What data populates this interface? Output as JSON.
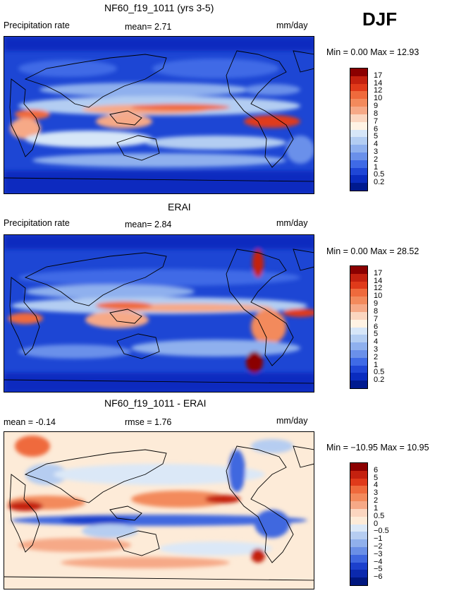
{
  "season": "DJF",
  "panels": [
    {
      "title": "NF60_f19_1011 (yrs 3-5)",
      "left_label": "Precipitation rate",
      "mid_label": "mean=    2.71",
      "units": "mm/day",
      "minmax": "Min =     0.00 Max =    12.93",
      "colorbar_levels": [
        "17",
        "14",
        "12",
        "10",
        "9",
        "8",
        "7",
        "6",
        "5",
        "4",
        "3",
        "2",
        "1",
        "0.5",
        "0.2"
      ]
    },
    {
      "title": "ERAI",
      "left_label": "Precipitation rate",
      "mid_label": "mean=    2.84",
      "units": "mm/day",
      "minmax": "Min =     0.00 Max =    28.52",
      "colorbar_levels": [
        "17",
        "14",
        "12",
        "10",
        "9",
        "8",
        "7",
        "6",
        "5",
        "4",
        "3",
        "2",
        "1",
        "0.5",
        "0.2"
      ]
    },
    {
      "title": "NF60_f19_1011 - ERAI",
      "left_label": "mean =   -0.14",
      "mid_label": "rmse =    1.76",
      "units": "mm/day",
      "minmax": "Min = −10.95 Max =    10.95",
      "colorbar_levels": [
        "6",
        "5",
        "4",
        "3",
        "2",
        "1",
        "0.5",
        "0",
        "−0.5",
        "−1",
        "−2",
        "−3",
        "−4",
        "−5",
        "−6"
      ]
    }
  ],
  "colors": {
    "precip_scale": [
      "#8b0000",
      "#c4210f",
      "#e03a1a",
      "#ef6a3c",
      "#f38a5c",
      "#f6a987",
      "#fbd6c0",
      "#fff3e4",
      "#d6e6f8",
      "#b3cdf2",
      "#8fb0ee",
      "#6a90ea",
      "#3f6ae6",
      "#1f46d6",
      "#0a2cbf",
      "#001a8f"
    ],
    "anom_scale": [
      "#8b0000",
      "#c4210f",
      "#e03a1a",
      "#ef6a3c",
      "#f38a5c",
      "#f6a987",
      "#fbd6c0",
      "#fdebd8",
      "#dbe8f7",
      "#b6cdf1",
      "#90b0ec",
      "#6a8fe6",
      "#3f67df",
      "#1c40cc",
      "#0b29ad",
      "#00177f"
    ]
  }
}
